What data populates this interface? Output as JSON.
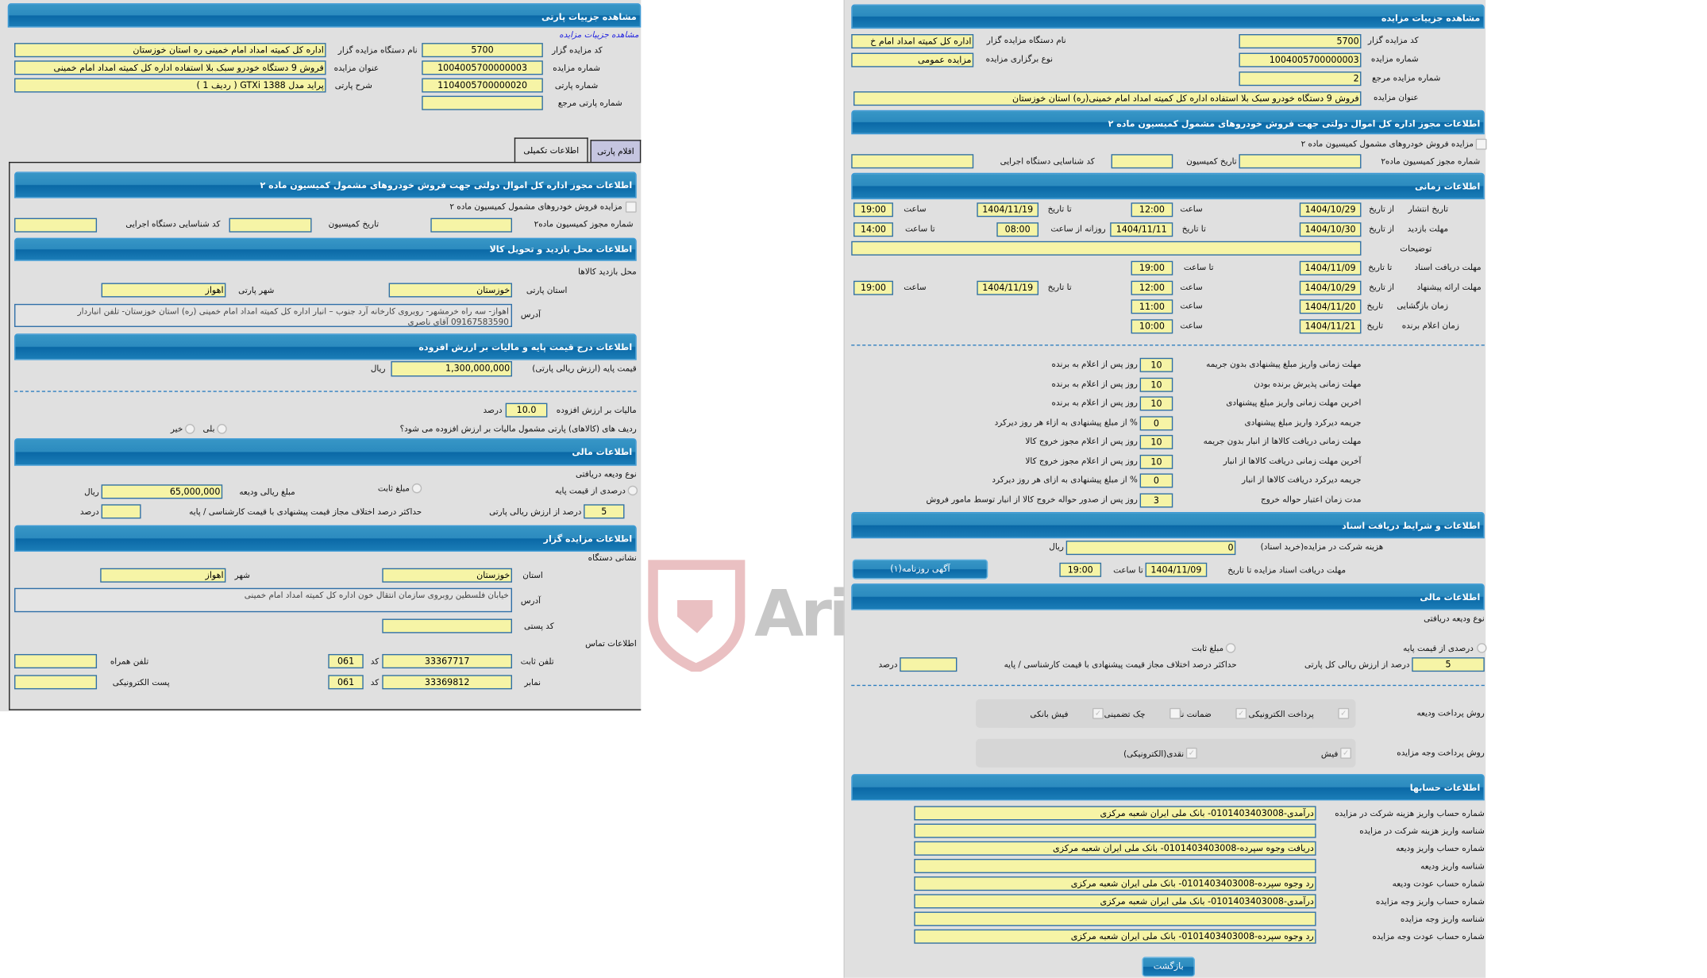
{
  "left": {
    "header": "مشاهده جزییات پارتی",
    "link": "مشاهده جزییات مزایده",
    "organizer_code_label": "کد مزایده گزار",
    "organizer_code": "5700",
    "auction_no_label": "شماره مزایده",
    "auction_no": "1004005700000003",
    "lot_no_label": "شماره پارتی",
    "lot_no": "1104005700000020",
    "ref_lot_label": "شماره پارتی مرجع",
    "ref_lot": "",
    "org_name_label": "نام دستگاه مزایده گزار",
    "org_name": "اداره کل کمیته امداد امام خمینی  ره   استان خوزستان",
    "title_label": "عنوان مزایده",
    "title": "فروش 9 دستگاه خودرو سبک بلا استفاده اداره کل کمیته امداد امام خمینی",
    "desc_label": "شرح پارتی",
    "desc": "پراید مدل GTXi 1388 ( ردیف 1 )",
    "tabs": [
      "اطلاعات تکمیلی",
      "اقلام پارتی"
    ],
    "permit": {
      "header": "اطلاعات مجوز اداره کل اموال دولتی جهت فروش خودروهای مشمول کمیسیون ماده ۲",
      "checkbox": "مزایده فروش خودروهای مشمول کمیسیون ماده ۲",
      "permit_no": "شماره مجوز کمیسیون ماده۲",
      "commission_date": "تاریخ کمیسیون",
      "exec_id": "کد شناسایی دستگاه اجرایی"
    },
    "visit": {
      "header": "اطلاعات محل بازدید و تحویل کالا",
      "subtitle": "محل بازدید کالاها",
      "province_label": "استان پارتی",
      "province": "خوزستان",
      "city_label": "شهر پارتی",
      "city": "اهواز",
      "address_label": "آدرس",
      "address": "اهواز- سه راه خرمشهر- روبروی کارخانه آرد جنوب – انبار اداره کل کمیته امداد امام خمینی (ره) استان خوزستان- تلفن انباردار 09167583590  آقای ناصری"
    },
    "price": {
      "header": "اطلاعات درج قیمت پایه و مالیات بر ارزش افزوده",
      "base_label": "قیمت پایه (ارزش ریالی پارتی)",
      "base": "1,300,000,000",
      "rial": "ریال",
      "vat_label": "مالیات بر ارزش افزوده",
      "vat": "10.0",
      "percent": "درصد",
      "vat_q": "ردیف های (کالاهای) پارتی مشمول مالیات بر ارزش افزوده می شود؟",
      "yes": "بلی",
      "no": "خیر"
    },
    "finance": {
      "header": "اطلاعات مالی",
      "deposit_type": "نوع ودیعه دریافتی",
      "pct_base": "درصدی از قیمت پایه",
      "fixed": "مبلغ ثابت",
      "deposit_amount_label": "مبلغ ریالی ودیعه",
      "deposit_amount": "65,000,000",
      "rial": "ریال",
      "pct_value": "5",
      "pct_label": "درصد از ارزش ریالی پارتی",
      "max_diff": "حداکثر درصد اختلاف مجاز قیمت پیشنهادی با قیمت کارشناسی / پایه",
      "percent": "درصد"
    },
    "org": {
      "header": "اطلاعات مزایده گزار",
      "addr_title": "نشانی دستگاه",
      "province_label": "استان",
      "province": "خوزستان",
      "city_label": "شهر",
      "city": "اهواز",
      "address_label": "آدرس",
      "address": "خیابان فلسطین روبروی سازمان انتقال خون اداره کل کمیته امداد امام خمینی",
      "postal_label": "کد پستی",
      "contact_title": "اطلاعات تماس",
      "phone_label": "تلفن ثابت",
      "phone": "33367717",
      "code_label": "کد",
      "code": "061",
      "mobile_label": "تلفن همراه",
      "fax_label": "نمابر",
      "fax": "33369812",
      "email_label": "پست الکترونیکی"
    }
  },
  "right": {
    "header": "مشاهده جزییات مزایده",
    "organizer_code_label": "کد مزایده گزار",
    "organizer_code": "5700",
    "auction_no_label": "شماره مزایده",
    "auction_no": "1004005700000003",
    "ref_no_label": "شماره مزایده مرجع",
    "ref_no": "2",
    "title_label": "عنوان مزایده",
    "title": "فروش 9 دستگاه خودرو سبک بلا استفاده اداره کل کمیته امداد امام خمینی(ره) استان خوزستان",
    "org_name_label": "نام دستگاه مزایده گزار",
    "org_name": "اداره کل کمیته امداد امام خ",
    "type_label": "نوع برگزاری مزایده",
    "type": "مزایده عمومی",
    "permit": {
      "header": "اطلاعات مجوز اداره کل اموال دولتی جهت فروش خودروهای مشمول کمیسیون ماده ۲",
      "checkbox": "مزایده فروش خودروهای مشمول کمیسیون ماده ۲",
      "permit_no": "شماره مجوز کمیسیون ماده۲",
      "commission_date": "تاریخ کمیسیون",
      "exec_id": "کد شناسایی دستگاه اجرایی"
    },
    "time": {
      "header": "اطلاعات زمانی",
      "from_date": "از تاریخ",
      "to_date": "تا تاریخ",
      "date": "تاریخ",
      "hour": "ساعت",
      "to_hour": "تا ساعت",
      "daily_from": "روزانه از ساعت",
      "notes": "توضیحات",
      "publish": {
        "label": "تاریخ انتشار",
        "from": "1404/10/29",
        "from_time": "12:00",
        "to": "1404/11/19",
        "to_time": "19:00"
      },
      "visit": {
        "label": "مهلت بازدید",
        "from": "1404/10/30",
        "to": "1404/11/11",
        "daily_from": "08:00",
        "daily_to": "14:00"
      },
      "docs": {
        "label": "مهلت دریافت اسناد",
        "to": "1404/11/09",
        "to_time": "19:00"
      },
      "offer": {
        "label": "مهلت ارائه پیشنهاد",
        "from": "1404/10/29",
        "from_time": "12:00",
        "to": "1404/11/19",
        "to_time": "19:00"
      },
      "opening": {
        "label": "زمان بازگشایی",
        "date": "1404/11/20",
        "time": "11:00"
      },
      "winner": {
        "label": "زمان اعلام برنده",
        "date": "1404/11/21",
        "time": "10:00"
      }
    },
    "terms": [
      {
        "label": "مهلت زمانی واریز مبلغ پیشنهادی بدون جریمه",
        "value": "10",
        "unit": "روز پس از اعلام به برنده"
      },
      {
        "label": "مهلت زمانی پذیرش برنده بودن",
        "value": "10",
        "unit": "روز پس از اعلام به برنده"
      },
      {
        "label": "اخرین مهلت زمانی واریز مبلغ پیشنهادی",
        "value": "10",
        "unit": "روز پس از اعلام به برنده"
      },
      {
        "label": "جریمه دیرکرد واریز مبلغ پیشنهادی",
        "value": "0",
        "unit": "% از مبلغ پیشنهادی به ازاء هر روز دیرکرد"
      },
      {
        "label": "مهلت زمانی دریافت کالاها از انبار بدون جریمه",
        "value": "10",
        "unit": "روز پس از اعلام مجوز خروج کالا"
      },
      {
        "label": "آخرین مهلت زمانی دریافت کالاها از انبار",
        "value": "10",
        "unit": "روز پس از اعلام مجوز خروج کالا"
      },
      {
        "label": "جریمه دیرکرد دریافت کالاها از انبار",
        "value": "0",
        "unit": "% از مبلغ پیشنهادی به ازای هر روز دیرکرد"
      },
      {
        "label": "مدت زمان اعتبار حواله خروج",
        "value": "3",
        "unit": "روز پس از صدور حواله خروج کالا از انبار توسط مامور فروش"
      }
    ],
    "docs": {
      "header": "اطلاعات و شرایط دریافت اسناد",
      "fee_label": "هزینه شرکت در مزایده(خرید اسناد)",
      "fee": "0",
      "rial": "ریال",
      "deadline_label": "مهلت دریافت اسناد مزایده تا تاریخ",
      "deadline": "1404/11/09",
      "to_hour": "تا ساعت",
      "deadline_time": "19:00",
      "ad_button": "آگهی روزنامه(۱)"
    },
    "finance": {
      "header": "اطلاعات مالی",
      "deposit_type": "نوع ودیعه دریافتی",
      "pct_base": "درصدی از قیمت پایه",
      "fixed": "مبلغ ثابت",
      "pct_value": "5",
      "pct_label": "درصد از ارزش ریالی کل پارتی",
      "max_diff": "حداکثر درصد اختلاف مجاز قیمت پیشنهادی با قیمت کارشناسی / پایه",
      "percent": "درصد",
      "deposit_methods_label": "روش پرداخت ودیعه",
      "deposit_methods": [
        {
          "label": "پرداخت الکترونیکی",
          "checked": true
        },
        {
          "label": "ضمانت نامه",
          "checked": true
        },
        {
          "label": "چک تضمینی",
          "checked": false
        },
        {
          "label": "فیش بانکی",
          "checked": true
        }
      ],
      "payment_methods_label": "روش پرداخت وجه مزایده",
      "payment_methods": [
        {
          "label": "فیش",
          "checked": true
        },
        {
          "label": "نقدی(الکترونیکی)",
          "checked": true
        }
      ]
    },
    "accounts": {
      "header": "اطلاعات حسابها",
      "rows": [
        {
          "label": "شماره حساب واریز هزینه شرکت در مزایده",
          "value": "درآمدی-0101403403008- بانک ملی ایران شعبه مرکزی"
        },
        {
          "label": "شناسه واریز هزینه شرکت در مزایده",
          "value": ""
        },
        {
          "label": "شماره حساب واریز ودیعه",
          "value": "دریافت وجوه سپرده-0101403403008- بانک ملی ایران شعبه مرکزی"
        },
        {
          "label": "شناسه واریز ودیعه",
          "value": ""
        },
        {
          "label": "شماره حساب عودت ودیعه",
          "value": "رد وجوه سپرده-0101403403008- بانک ملی ایران شعبه مرکزی"
        },
        {
          "label": "شماره حساب واریز وجه مزایده",
          "value": "درآمدی-0101403403008- بانک ملی ایران شعبه مرکزی"
        },
        {
          "label": "شناسه واریز وجه مزایده",
          "value": ""
        },
        {
          "label": "شماره حساب عودت وجه مزایده",
          "value": "رد وجوه سپرده-0101403403008- بانک ملی ایران شعبه مرکزی"
        }
      ]
    },
    "back_button": "بازگشت"
  },
  "watermark": "AriaTender.neT",
  "colors": {
    "header": "#2c8bbf",
    "input_bg": "#f6f4a6",
    "panel_bg": "#e0e0e0",
    "watermark": "#e3a5a8"
  }
}
